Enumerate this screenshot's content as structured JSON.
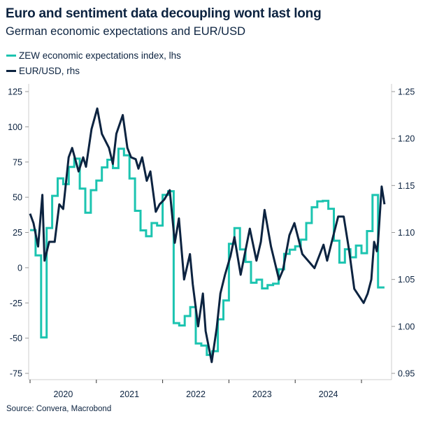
{
  "header": {
    "title": "Euro and sentiment data decoupling wont last long",
    "subtitle": "German economic expectations and EUR/USD"
  },
  "footer": {
    "source": "Source: Convera, Macrobond"
  },
  "chart_data": {
    "type": "line",
    "title": "Euro and sentiment data decoupling wont last long",
    "subtitle": "German economic expectations and EUR/USD",
    "legend_placement": "top-left",
    "grid": false,
    "x_axis": {
      "type": "date",
      "range": [
        "2020-01-01",
        "2025-05-10"
      ],
      "tick_labels": [
        "2020",
        "2021",
        "2022",
        "2023",
        "2024"
      ]
    },
    "y_left": {
      "ylim": [
        -75,
        125
      ],
      "ticks": [
        125,
        100,
        75,
        50,
        25,
        0,
        -25,
        -50,
        -75
      ],
      "tick_labels": [
        "125",
        "100",
        "75",
        "50",
        "25",
        "0",
        "-25",
        "-50",
        "-75"
      ]
    },
    "y_right": {
      "ylim": [
        0.95,
        1.25
      ],
      "ticks": [
        1.25,
        1.2,
        1.15,
        1.1,
        1.05,
        1.0,
        0.95
      ],
      "tick_labels": [
        "1.25",
        "1.20",
        "1.15",
        "1.10",
        "1.05",
        "1.00",
        "0.95"
      ]
    },
    "series": [
      {
        "name": "ZEW economic expectations index, lhs",
        "axis": "left",
        "color": "#1cc4b0",
        "step": true,
        "x": [
          "2020-01",
          "2020-02",
          "2020-03",
          "2020-04",
          "2020-05",
          "2020-06",
          "2020-07",
          "2020-08",
          "2020-09",
          "2020-10",
          "2020-11",
          "2020-12",
          "2021-01",
          "2021-02",
          "2021-03",
          "2021-04",
          "2021-05",
          "2021-06",
          "2021-07",
          "2021-08",
          "2021-09",
          "2021-10",
          "2021-11",
          "2021-12",
          "2022-01",
          "2022-02",
          "2022-03",
          "2022-04",
          "2022-05",
          "2022-06",
          "2022-07",
          "2022-08",
          "2022-09",
          "2022-10",
          "2022-11",
          "2022-12",
          "2023-01",
          "2023-02",
          "2023-03",
          "2023-04",
          "2023-05",
          "2023-06",
          "2023-07",
          "2023-08",
          "2023-09",
          "2023-10",
          "2023-11",
          "2023-12",
          "2024-01",
          "2024-02",
          "2024-03",
          "2024-04",
          "2024-05",
          "2024-06",
          "2024-07",
          "2024-08",
          "2024-09",
          "2024-10",
          "2024-11",
          "2024-12",
          "2025-01",
          "2025-02",
          "2025-03",
          "2025-04"
        ],
        "values": [
          26.7,
          8.7,
          -49.5,
          28.2,
          51.0,
          63.4,
          59.3,
          71.5,
          77.4,
          56.1,
          39.0,
          55.0,
          61.8,
          71.2,
          76.6,
          70.7,
          84.4,
          79.8,
          63.3,
          40.4,
          26.5,
          22.3,
          31.7,
          29.9,
          51.7,
          54.3,
          -39.3,
          -41.0,
          -34.3,
          -28.0,
          -53.8,
          -55.3,
          -61.9,
          -59.2,
          -36.7,
          -23.3,
          16.9,
          28.1,
          13.0,
          4.1,
          -10.7,
          -8.5,
          -14.7,
          -12.3,
          -11.4,
          -1.1,
          9.8,
          12.8,
          15.2,
          19.9,
          31.7,
          42.9,
          47.1,
          47.5,
          41.8,
          19.2,
          3.6,
          13.1,
          7.4,
          15.7,
          10.3,
          26.0,
          51.6,
          -14.0
        ]
      },
      {
        "name": "EUR/USD, rhs",
        "axis": "right",
        "color": "#0c2340",
        "x": [
          "2020-01-01",
          "2020-01-20",
          "2020-02-15",
          "2020-03-08",
          "2020-03-20",
          "2020-04-15",
          "2020-05-15",
          "2020-06-10",
          "2020-07-01",
          "2020-07-31",
          "2020-08-20",
          "2020-09-25",
          "2020-10-20",
          "2020-11-05",
          "2020-12-05",
          "2021-01-06",
          "2021-02-01",
          "2021-03-10",
          "2021-03-31",
          "2021-04-20",
          "2021-05-25",
          "2021-06-20",
          "2021-07-10",
          "2021-08-05",
          "2021-08-20",
          "2021-09-10",
          "2021-10-05",
          "2021-10-25",
          "2021-11-24",
          "2021-12-15",
          "2022-01-10",
          "2022-02-10",
          "2022-03-07",
          "2022-03-30",
          "2022-04-28",
          "2022-05-30",
          "2022-06-15",
          "2022-07-14",
          "2022-08-10",
          "2022-08-25",
          "2022-09-28",
          "2022-10-25",
          "2022-11-15",
          "2022-12-10",
          "2023-01-10",
          "2023-02-01",
          "2023-03-05",
          "2023-04-25",
          "2023-05-31",
          "2023-06-25",
          "2023-07-15",
          "2023-08-20",
          "2023-10-03",
          "2023-10-25",
          "2023-11-30",
          "2023-12-27",
          "2024-02-10",
          "2024-04-16",
          "2024-06-05",
          "2024-06-25",
          "2024-07-20",
          "2024-08-25",
          "2024-09-25",
          "2024-10-25",
          "2024-11-22",
          "2025-01-13",
          "2025-02-05",
          "2025-02-25",
          "2025-03-10",
          "2025-03-25",
          "2025-04-01",
          "2025-04-21",
          "2025-05-06"
        ],
        "values": [
          1.12,
          1.11,
          1.085,
          1.14,
          1.07,
          1.09,
          1.09,
          1.13,
          1.125,
          1.18,
          1.19,
          1.165,
          1.18,
          1.17,
          1.21,
          1.232,
          1.205,
          1.19,
          1.173,
          1.205,
          1.225,
          1.19,
          1.18,
          1.178,
          1.168,
          1.18,
          1.155,
          1.165,
          1.122,
          1.13,
          1.135,
          1.145,
          1.089,
          1.115,
          1.05,
          1.077,
          1.045,
          1.0,
          1.035,
          0.995,
          0.962,
          0.998,
          1.035,
          1.055,
          1.075,
          1.095,
          1.055,
          1.104,
          1.07,
          1.09,
          1.124,
          1.085,
          1.05,
          1.06,
          1.097,
          1.11,
          1.077,
          1.062,
          1.087,
          1.07,
          1.09,
          1.117,
          1.117,
          1.08,
          1.04,
          1.025,
          1.035,
          1.05,
          1.09,
          1.08,
          1.09,
          1.149,
          1.13
        ]
      }
    ]
  }
}
